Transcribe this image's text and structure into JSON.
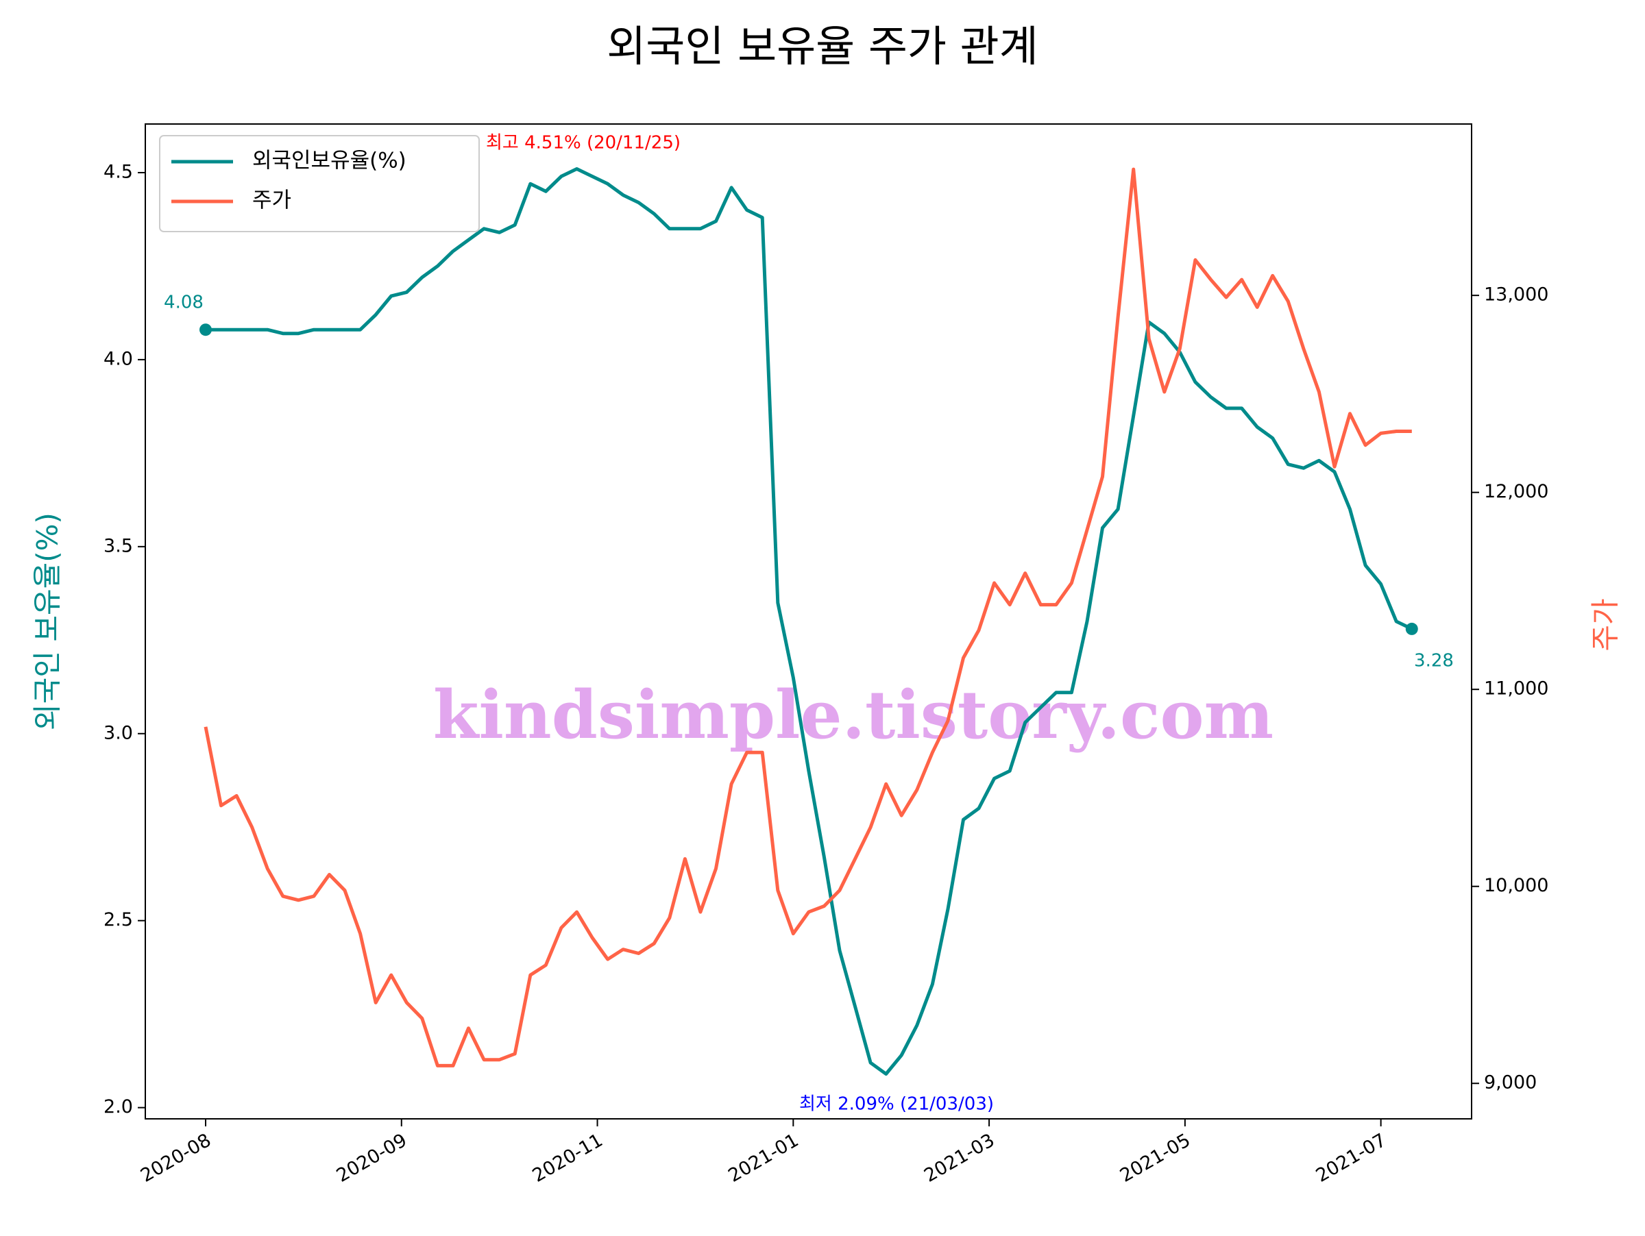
{
  "chart_data": {
    "type": "line",
    "title": "외국인 보유율 주가 관계",
    "ylabel": "외국인 보유율(%)",
    "y2label": "주가",
    "watermark": "kindsimple.tistory.com",
    "legend": "upper left",
    "grid": false,
    "x": [
      0,
      3,
      6,
      9,
      12,
      15,
      18,
      21,
      24,
      27,
      30,
      33,
      36,
      39,
      42,
      45,
      48,
      51,
      54,
      57,
      60,
      63,
      66,
      69,
      72,
      75,
      78,
      81,
      84,
      87,
      90,
      93,
      96,
      99,
      102,
      105,
      108,
      111,
      114,
      117,
      120,
      123,
      126,
      129,
      132,
      135,
      138,
      141,
      144,
      147,
      150,
      153,
      156,
      159,
      162,
      165,
      168,
      171,
      174,
      177,
      180,
      183,
      186,
      189,
      192,
      195,
      198,
      201,
      204,
      207,
      210,
      213,
      216,
      219,
      222,
      225,
      228,
      231,
      234
    ],
    "xlim": [
      -11.7,
      245.6
    ],
    "xticks": [
      {
        "value": 0,
        "label": "2020-08"
      },
      {
        "value": 38,
        "label": "2020-09"
      },
      {
        "value": 76,
        "label": "2020-11"
      },
      {
        "value": 114,
        "label": "2021-01"
      },
      {
        "value": 152,
        "label": "2021-03"
      },
      {
        "value": 190,
        "label": "2021-05"
      },
      {
        "value": 228,
        "label": "2021-07"
      }
    ],
    "ylim": [
      1.97,
      4.63
    ],
    "yticks": [
      {
        "value": 2.0,
        "label": "2.0"
      },
      2.5,
      {
        "value": 3.0,
        "label": "3.0"
      },
      3.5,
      {
        "value": 4.0,
        "label": "4.0"
      },
      4.5
    ],
    "y2lim": [
      8820,
      13870
    ],
    "y2ticks": [
      {
        "value": 9000,
        "label": "9,000"
      },
      {
        "value": 10000,
        "label": "10,000"
      },
      {
        "value": 11000,
        "label": "11,000"
      },
      {
        "value": 12000,
        "label": "12,000"
      },
      {
        "value": 13000,
        "label": "13,000"
      }
    ],
    "series": [
      {
        "name": "외국인보유율(%)",
        "color": "#008b8b",
        "axis": "y",
        "values": [
          4.08,
          4.08,
          4.08,
          4.08,
          4.08,
          4.07,
          4.07,
          4.08,
          4.08,
          4.08,
          4.08,
          4.12,
          4.17,
          4.18,
          4.22,
          4.25,
          4.29,
          4.32,
          4.35,
          4.34,
          4.36,
          4.47,
          4.45,
          4.49,
          4.51,
          4.49,
          4.47,
          4.44,
          4.42,
          4.39,
          4.35,
          4.35,
          4.35,
          4.37,
          4.46,
          4.4,
          4.38,
          3.35,
          3.15,
          2.9,
          2.67,
          2.42,
          2.27,
          2.12,
          2.09,
          2.14,
          2.22,
          2.33,
          2.53,
          2.77,
          2.8,
          2.88,
          2.9,
          3.03,
          3.07,
          3.11,
          3.11,
          3.3,
          3.55,
          3.6,
          3.85,
          4.1,
          4.07,
          4.02,
          3.94,
          3.9,
          3.87,
          3.87,
          3.82,
          3.79,
          3.72,
          3.71,
          3.73,
          3.7,
          3.6,
          3.45,
          3.4,
          3.3,
          3.28
        ]
      },
      {
        "name": "주가",
        "color": "#ff6347",
        "axis": "y2",
        "values": [
          10810,
          10410,
          10460,
          10300,
          10090,
          9950,
          9930,
          9950,
          10060,
          9980,
          9760,
          9410,
          9550,
          9410,
          9330,
          9090,
          9090,
          9280,
          9120,
          9120,
          9150,
          9550,
          9600,
          9790,
          9870,
          9740,
          9630,
          9680,
          9660,
          9710,
          9840,
          10140,
          9870,
          10090,
          10520,
          10680,
          10680,
          9980,
          9760,
          9870,
          9900,
          9980,
          10140,
          10300,
          10520,
          10360,
          10490,
          10680,
          10840,
          11160,
          11300,
          11540,
          11430,
          11590,
          11430,
          11430,
          11540,
          11810,
          12080,
          12890,
          13640,
          12780,
          12510,
          12730,
          13180,
          13080,
          12990,
          13080,
          12940,
          13100,
          12970,
          12730,
          12510,
          12130,
          12400,
          12240,
          12300,
          12310,
          12310
        ]
      }
    ],
    "annotations": [
      {
        "text": "최고 4.51% (20/11/25)",
        "color": "red"
      },
      {
        "text": "최저 2.09% (21/03/03)",
        "color": "blue"
      },
      {
        "text": "4.08",
        "color": "#008b8b"
      },
      {
        "text": "3.28",
        "color": "#008b8b"
      }
    ]
  }
}
